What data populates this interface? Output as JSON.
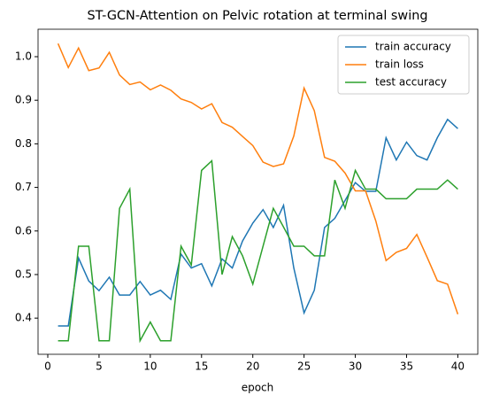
{
  "chart_data": {
    "type": "line",
    "title": "ST-GCN-Attention on Pelvic rotation at terminal swing",
    "x_label": "epoch",
    "x": [
      1,
      2,
      3,
      4,
      5,
      6,
      7,
      8,
      9,
      10,
      11,
      12,
      13,
      14,
      15,
      16,
      17,
      18,
      19,
      20,
      21,
      22,
      23,
      24,
      25,
      26,
      27,
      28,
      29,
      30,
      31,
      32,
      33,
      34,
      35,
      36,
      37,
      38,
      39,
      40
    ],
    "series": [
      {
        "name": "train accuracy",
        "color": "#1f77b4",
        "values": [
          0.382,
          0.382,
          0.538,
          0.485,
          0.463,
          0.494,
          0.453,
          0.453,
          0.484,
          0.453,
          0.464,
          0.443,
          0.547,
          0.515,
          0.525,
          0.474,
          0.536,
          0.515,
          0.577,
          0.618,
          0.649,
          0.608,
          0.659,
          0.515,
          0.412,
          0.464,
          0.608,
          0.629,
          0.67,
          0.711,
          0.691,
          0.691,
          0.814,
          0.763,
          0.804,
          0.773,
          0.763,
          0.814,
          0.856,
          0.835
        ]
      },
      {
        "name": "train loss",
        "color": "#ff7f0e",
        "values": [
          1.03,
          0.975,
          1.02,
          0.968,
          0.974,
          1.01,
          0.958,
          0.936,
          0.942,
          0.924,
          0.935,
          0.923,
          0.903,
          0.895,
          0.88,
          0.892,
          0.849,
          0.838,
          0.817,
          0.796,
          0.758,
          0.748,
          0.754,
          0.818,
          0.928,
          0.876,
          0.769,
          0.76,
          0.733,
          0.692,
          0.692,
          0.623,
          0.532,
          0.551,
          0.56,
          0.592,
          0.54,
          0.486,
          0.478,
          0.409
        ]
      },
      {
        "name": "test accuracy",
        "color": "#2ca02c",
        "values": [
          0.348,
          0.348,
          0.565,
          0.565,
          0.348,
          0.348,
          0.652,
          0.696,
          0.348,
          0.391,
          0.348,
          0.348,
          0.565,
          0.522,
          0.739,
          0.761,
          0.5,
          0.587,
          0.543,
          0.478,
          0.565,
          0.652,
          0.609,
          0.565,
          0.565,
          0.543,
          0.543,
          0.717,
          0.652,
          0.739,
          0.696,
          0.696,
          0.674,
          0.674,
          0.674,
          0.696,
          0.696,
          0.696,
          0.717,
          0.696
        ]
      }
    ],
    "xlim": [
      -0.95,
      41.95
    ],
    "xticks": [
      0,
      5,
      10,
      15,
      20,
      25,
      30,
      35,
      40
    ],
    "ylim": [
      0.317,
      1.063
    ],
    "yticks": [
      0.4,
      0.5,
      0.6,
      0.7,
      0.8,
      0.9,
      {
        "value": 1.0,
        "label": "1.0"
      }
    ],
    "legend": "upper right"
  }
}
